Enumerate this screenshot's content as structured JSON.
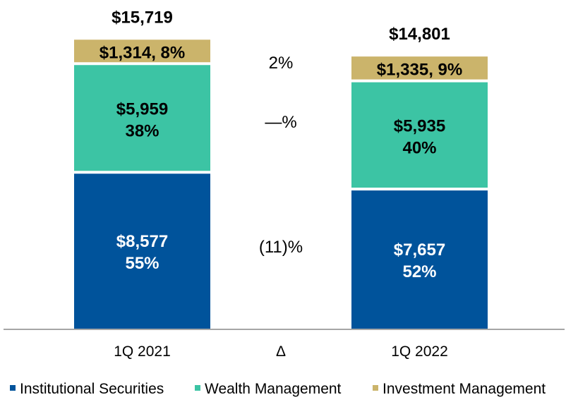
{
  "chart_data": {
    "type": "bar",
    "stacked": true,
    "categories": [
      "1Q 2021",
      "1Q 2022"
    ],
    "series": [
      {
        "name": "Institutional Securities",
        "color": "#00539B",
        "values": [
          8577,
          7657
        ],
        "labels": [
          "$8,577",
          "$7,657"
        ],
        "pct_labels": [
          "55%",
          "52%"
        ]
      },
      {
        "name": "Wealth Management",
        "color": "#3CC4A4",
        "values": [
          5959,
          5935
        ],
        "labels": [
          "$5,959",
          "$5,935"
        ],
        "pct_labels": [
          "38%",
          "40%"
        ]
      },
      {
        "name": "Investment Management",
        "color": "#CBB46B",
        "values": [
          1314,
          1335
        ],
        "labels": [
          "$1,314, 8%",
          "$1,335, 9%"
        ]
      }
    ],
    "totals": [
      "$15,719",
      "$14,801"
    ],
    "delta_header": "Δ",
    "deltas": [
      "(11)%",
      "—%",
      "2%"
    ],
    "legend_position": "bottom",
    "grid": false
  }
}
